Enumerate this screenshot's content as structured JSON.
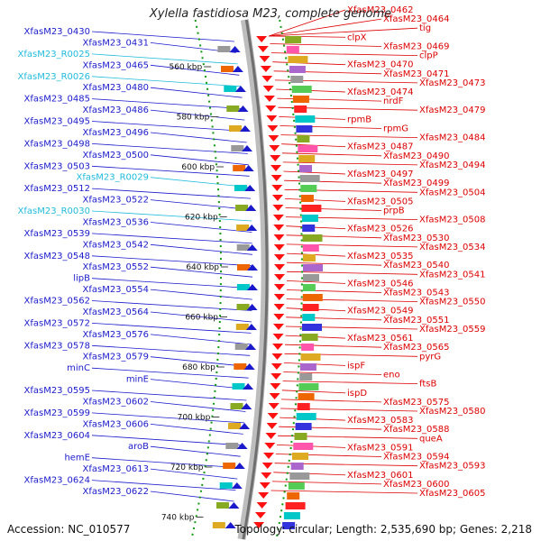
{
  "title": "Xylella fastidiosa M23, complete genome",
  "accession": "Accession: NC_010577",
  "topology": "Topology: circular; Length: 2,535,690 bp; Genes: 2,218",
  "colors": {
    "left_gene": "#1a1acc",
    "left_rna": "#22bbdd",
    "right_gene": "#dd0000",
    "backbone": "#999999",
    "tick_green": "#119911"
  },
  "ticks": [
    "560 kbp",
    "580 kbp",
    "600 kbp",
    "620 kbp",
    "640 kbp",
    "660 kbp",
    "680 kbp",
    "700 kbp",
    "720 kbp",
    "740 kbp"
  ],
  "left_labels": [
    "XfasM23_0430",
    "XfasM23_0431",
    "XfasM23_R0025",
    "XfasM23_0465",
    "XfasM23_R0026",
    "XfasM23_0480",
    "XfasM23_0485",
    "XfasM23_0486",
    "XfasM23_0495",
    "XfasM23_0496",
    "XfasM23_0498",
    "XfasM23_0500",
    "XfasM23_0503",
    "XfasM23_R0029",
    "XfasM23_0512",
    "XfasM23_0522",
    "XfasM23_R0030",
    "XfasM23_0536",
    "XfasM23_0539",
    "XfasM23_0542",
    "XfasM23_0548",
    "XfasM23_0552",
    "lipB",
    "XfasM23_0554",
    "XfasM23_0562",
    "XfasM23_0564",
    "XfasM23_0572",
    "XfasM23_0576",
    "XfasM23_0578",
    "XfasM23_0579",
    "minC",
    "minE",
    "XfasM23_0595",
    "XfasM23_0602",
    "XfasM23_0599",
    "XfasM23_0606",
    "XfasM23_0604",
    "aroB",
    "hemE",
    "XfasM23_0613",
    "XfasM23_0624",
    "XfasM23_0622"
  ],
  "right_labels": [
    "XfasM23_0462",
    "XfasM23_0464",
    "tig",
    "clpX",
    "XfasM23_0469",
    "clpP",
    "XfasM23_0470",
    "XfasM23_0471",
    "XfasM23_0473",
    "XfasM23_0474",
    "nrdF",
    "XfasM23_0479",
    "rpmB",
    "rpmG",
    "XfasM23_0484",
    "XfasM23_0487",
    "XfasM23_0490",
    "XfasM23_0494",
    "XfasM23_0497",
    "XfasM23_0499",
    "XfasM23_0504",
    "XfasM23_0505",
    "prpB",
    "XfasM23_0508",
    "XfasM23_0526",
    "XfasM23_0530",
    "XfasM23_0534",
    "XfasM23_0535",
    "XfasM23_0540",
    "XfasM23_0541",
    "XfasM23_0546",
    "XfasM23_0543",
    "XfasM23_0550",
    "XfasM23_0549",
    "XfasM23_0551",
    "XfasM23_0559",
    "XfasM23_0561",
    "XfasM23_0565",
    "pyrG",
    "ispF",
    "eno",
    "ftsB",
    "ispD",
    "XfasM23_0575",
    "XfasM23_0580",
    "XfasM23_0583",
    "XfasM23_0588",
    "queA",
    "XfasM23_0591",
    "XfasM23_0594",
    "XfasM23_0593",
    "XfasM23_0601",
    "XfasM23_0600",
    "XfasM23_0605"
  ]
}
